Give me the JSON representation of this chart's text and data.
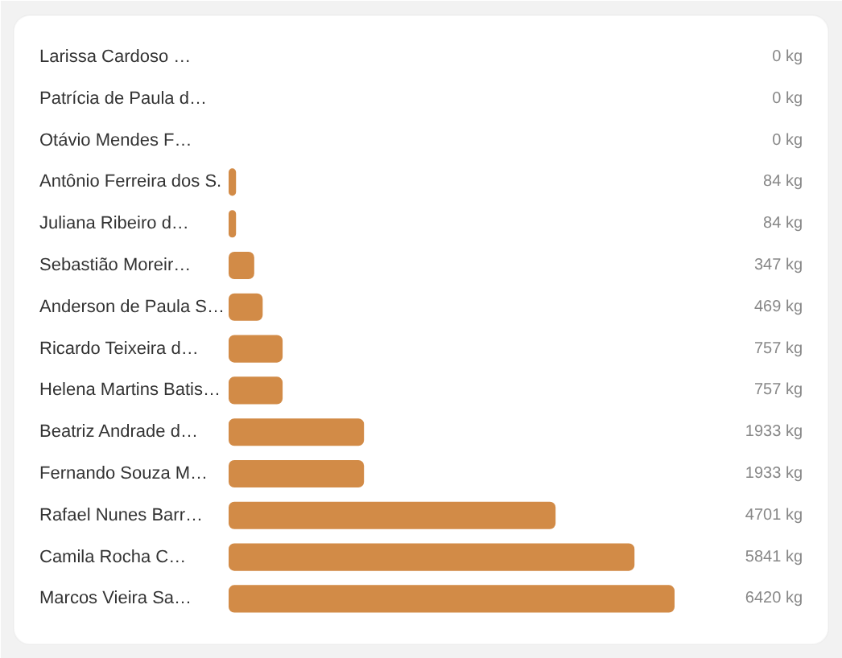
{
  "chart_data": {
    "type": "bar",
    "orientation": "horizontal",
    "categories": [
      "Larissa Cardoso …",
      "Patrícia de Paula d…",
      "Otávio Mendes F…",
      "Antônio Ferreira dos S.",
      "Juliana Ribeiro d…",
      "Sebastião Moreir…",
      "Anderson de Paula S…",
      "Ricardo Teixeira d…",
      "Helena Martins Batis…",
      "Beatriz Andrade d…",
      "Fernando Souza M…",
      "Rafael Nunes Barr…",
      "Camila Rocha C…",
      "Marcos Vieira Sa…"
    ],
    "values": [
      0,
      0,
      0,
      84,
      84,
      347,
      469,
      757,
      757,
      1933,
      1933,
      4701,
      5841,
      6420
    ],
    "value_labels": [
      "0 kg",
      "0 kg",
      "0 kg",
      "84 kg",
      "84 kg",
      "347 kg",
      "469 kg",
      "757 kg",
      "757 kg",
      "1933 kg",
      "1933 kg",
      "4701 kg",
      "5841 kg",
      "6420 kg"
    ],
    "color": "#d28b47"
  }
}
